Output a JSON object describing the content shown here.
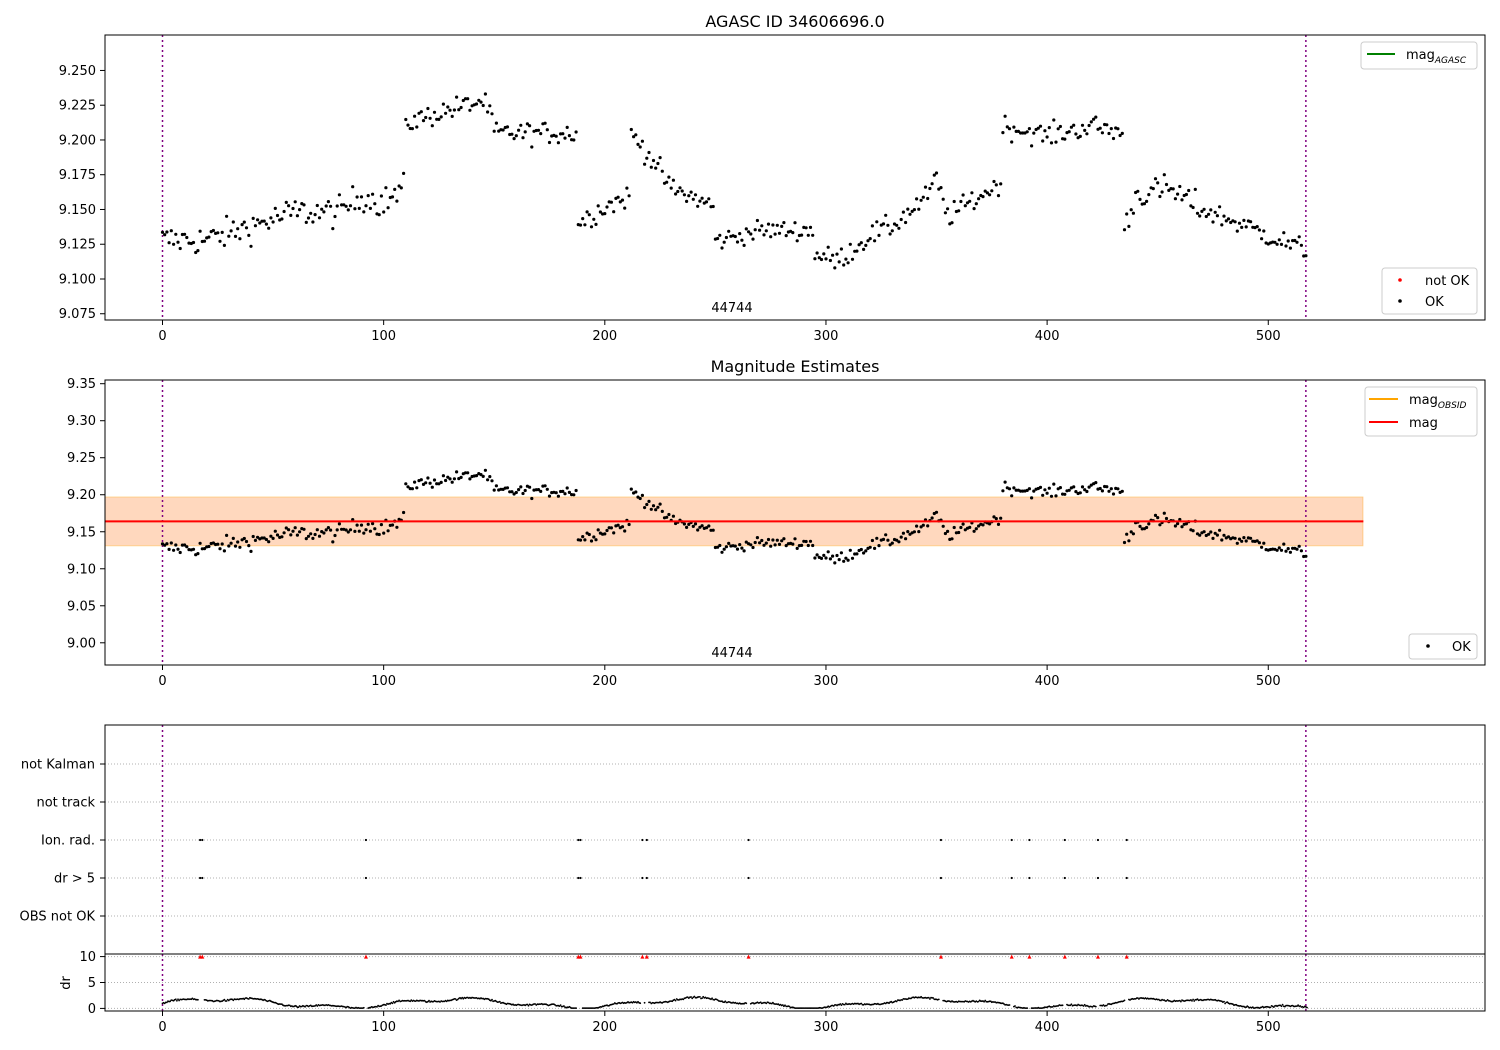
{
  "chart_data": [
    {
      "type": "scatter",
      "title": "AGASC ID 34606696.0",
      "xlim": [
        -26,
        598
      ],
      "ylim": [
        9.0705,
        9.2755
      ],
      "xticks": [
        0,
        100,
        200,
        300,
        400,
        500
      ],
      "yticks": [
        9.075,
        9.1,
        9.125,
        9.15,
        9.175,
        9.2,
        9.225,
        9.25
      ],
      "ytick_labels": [
        "9.075",
        "9.100",
        "9.125",
        "9.150",
        "9.175",
        "9.200",
        "9.225",
        "9.250"
      ],
      "vlines": [
        0,
        517
      ],
      "annotation": "44744",
      "legend_lines": [
        {
          "label": "mag",
          "sub": "AGASC",
          "color": "#008000"
        }
      ],
      "legend_points": [
        {
          "label": "not OK",
          "color": "#ff0000"
        },
        {
          "label": "OK",
          "color": "#000000"
        }
      ],
      "segments": [
        {
          "x0": 0,
          "x1": 110,
          "trend": [
            [
              0,
              9.128
            ],
            [
              20,
              9.128
            ],
            [
              40,
              9.138
            ],
            [
              60,
              9.148
            ],
            [
              80,
              9.148
            ],
            [
              90,
              9.16
            ],
            [
              100,
              9.155
            ],
            [
              110,
              9.165
            ]
          ],
          "noise": 0.011
        },
        {
          "x0": 110,
          "x1": 150,
          "trend": [
            [
              110,
              9.212
            ],
            [
              130,
              9.222
            ],
            [
              145,
              9.228
            ],
            [
              150,
              9.212
            ]
          ],
          "noise": 0.008
        },
        {
          "x0": 150,
          "x1": 188,
          "trend": [
            [
              150,
              9.205
            ],
            [
              170,
              9.205
            ],
            [
              188,
              9.205
            ]
          ],
          "noise": 0.008
        },
        {
          "x0": 188,
          "x1": 212,
          "trend": [
            [
              188,
              9.14
            ],
            [
              200,
              9.152
            ],
            [
              212,
              9.16
            ]
          ],
          "noise": 0.008
        },
        {
          "x0": 212,
          "x1": 250,
          "trend": [
            [
              212,
              9.205
            ],
            [
              222,
              9.185
            ],
            [
              230,
              9.165
            ],
            [
              250,
              9.152
            ]
          ],
          "noise": 0.008
        },
        {
          "x0": 250,
          "x1": 295,
          "trend": [
            [
              250,
              9.127
            ],
            [
              270,
              9.135
            ],
            [
              295,
              9.135
            ]
          ],
          "noise": 0.007
        },
        {
          "x0": 295,
          "x1": 318,
          "trend": [
            [
              295,
              9.118
            ],
            [
              305,
              9.113
            ],
            [
              318,
              9.128
            ]
          ],
          "noise": 0.008
        },
        {
          "x0": 318,
          "x1": 380,
          "trend": [
            [
              318,
              9.13
            ],
            [
              330,
              9.138
            ],
            [
              345,
              9.158
            ],
            [
              350,
              9.172
            ],
            [
              355,
              9.145
            ],
            [
              370,
              9.16
            ],
            [
              380,
              9.17
            ]
          ],
          "noise": 0.008
        },
        {
          "x0": 380,
          "x1": 435,
          "trend": [
            [
              380,
              9.21
            ],
            [
              400,
              9.203
            ],
            [
              420,
              9.21
            ],
            [
              435,
              9.205
            ]
          ],
          "noise": 0.008
        },
        {
          "x0": 435,
          "x1": 470,
          "trend": [
            [
              435,
              9.135
            ],
            [
              440,
              9.16
            ],
            [
              455,
              9.165
            ],
            [
              470,
              9.15
            ]
          ],
          "noise": 0.01
        },
        {
          "x0": 470,
          "x1": 518,
          "trend": [
            [
              470,
              9.15
            ],
            [
              490,
              9.138
            ],
            [
              505,
              9.128
            ],
            [
              518,
              9.12
            ]
          ],
          "noise": 0.008
        }
      ]
    },
    {
      "type": "scatter",
      "title": "Magnitude Estimates",
      "xlim": [
        -26,
        598
      ],
      "ylim": [
        8.97,
        9.355
      ],
      "xticks": [
        0,
        100,
        200,
        300,
        400,
        500
      ],
      "yticks": [
        9.0,
        9.05,
        9.1,
        9.15,
        9.2,
        9.25,
        9.3,
        9.35
      ],
      "ytick_labels": [
        "9.00",
        "9.05",
        "9.10",
        "9.15",
        "9.20",
        "9.25",
        "9.30",
        "9.35"
      ],
      "vlines": [
        0,
        517
      ],
      "annotation": "44744",
      "mag": 9.164,
      "band": [
        9.131,
        9.197
      ],
      "band_x": [
        -26,
        543
      ],
      "legend_lines": [
        {
          "label": "mag",
          "sub": "OBSID",
          "color": "#ffa500"
        },
        {
          "label": "mag",
          "sub": "",
          "color": "#ff0000"
        }
      ],
      "legend_points": [
        {
          "label": "OK",
          "color": "#000000"
        }
      ]
    },
    {
      "type": "scatter",
      "xlim": [
        -26,
        598
      ],
      "categories": [
        "OBS not OK",
        "dr > 5",
        "Ion. rad.",
        "not track",
        "not Kalman"
      ],
      "vlines": [
        0,
        517
      ],
      "flag_x": [
        17,
        18,
        92,
        188,
        189,
        217,
        219,
        265,
        352,
        384,
        392,
        408,
        423,
        436
      ],
      "flag_rows": [
        "dr > 5",
        "Ion. rad."
      ],
      "dr_ylabel": "dr",
      "dr_yticks": [
        0,
        5,
        10
      ],
      "dr_ylim": [
        -0.5,
        10.5
      ],
      "dr_clip": 10,
      "xticks": [
        0,
        100,
        200,
        300,
        400,
        500
      ]
    }
  ]
}
